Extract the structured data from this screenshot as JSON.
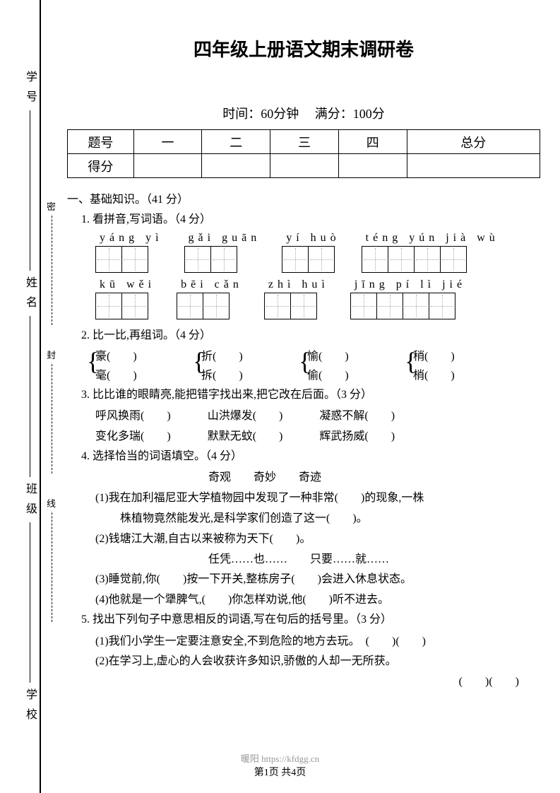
{
  "title": "四年级上册语文期末调研卷",
  "meta": {
    "time_label": "时间：",
    "time_value": "60分钟",
    "full_label": "满分：",
    "full_value": "100分"
  },
  "score_table": {
    "header": [
      "题号",
      "一",
      "二",
      "三",
      "四",
      "总分"
    ],
    "row_label": "得分"
  },
  "spine": {
    "xuexiao": "学 校",
    "banji": "班 级",
    "xingming": "姓 名",
    "xuehao": "学 号"
  },
  "dash_labels": {
    "top": "密",
    "mid": "封",
    "bot": "线"
  },
  "section1": {
    "header": "一、基础知识。（41 分）",
    "q1": {
      "title": "1. 看拼音,写词语。（4 分）",
      "row1": [
        {
          "pinyin": "yáng  yì",
          "boxes": 2
        },
        {
          "pinyin": "gǎi  guān",
          "boxes": 2
        },
        {
          "pinyin": "yí  huò",
          "boxes": 2
        },
        {
          "pinyin": "téng  yún  jià  wù",
          "boxes": 4
        }
      ],
      "row2": [
        {
          "pinyin": "kū  wěi",
          "boxes": 2
        },
        {
          "pinyin": "bēi  cǎn",
          "boxes": 2
        },
        {
          "pinyin": "zhì  huì",
          "boxes": 2
        },
        {
          "pinyin": "jīng  pí  lì  jié",
          "boxes": 4
        }
      ]
    },
    "q2": {
      "title": "2. 比一比,再组词。（4 分）",
      "pairs": [
        [
          "豪(　　)",
          "毫(　　)"
        ],
        [
          "折(　　)",
          "拆(　　)"
        ],
        [
          "愉(　　)",
          "偷(　　)"
        ],
        [
          "稍(　　)",
          "梢(　　)"
        ]
      ]
    },
    "q3": {
      "title": "3. 比比谁的眼睛亮,能把错字找出来,把它改在后面。（3 分）",
      "row1": [
        "呼风换雨(　　)",
        "山洪爆发(　　)",
        "凝惑不解(　　)"
      ],
      "row2": [
        "变化多瑞(　　)",
        "默默无蚊(　　)",
        "辉武扬威(　　)"
      ]
    },
    "q4": {
      "title": "4. 选择恰当的词语填空。（4 分）",
      "opts1": "奇观　　奇妙　　奇迹",
      "l1": "(1)我在加利福尼亚大学植物园中发现了一种非常(　　)的现象,一株",
      "l1b": "株植物竟然能发光,是科学家们创造了这一(　　)。",
      "l2": "(2)钱塘江大潮,自古以来被称为天下(　　)。",
      "opts2": "任凭……也……　　只要……就……",
      "l3": "(3)睡觉前,你(　　)按一下开关,整栋房子(　　)会进入休息状态。",
      "l4": "(4)他就是一个犟脾气,(　　)你怎样劝说,他(　　)听不进去。"
    },
    "q5": {
      "title": "5. 找出下列句子中意思相反的词语,写在句后的括号里。（3 分）",
      "l1": "(1)我们小学生一定要注意安全,不到危险的地方去玩。　(　　)(　　)",
      "l2": "(2)在学习上,虚心的人会收获许多知识,骄傲的人却一无所获。",
      "l2b": "(　　)(　　)"
    }
  },
  "footer": {
    "watermark": "暖阳 https://kfdgg.cn",
    "page": "第1页 共4页"
  }
}
